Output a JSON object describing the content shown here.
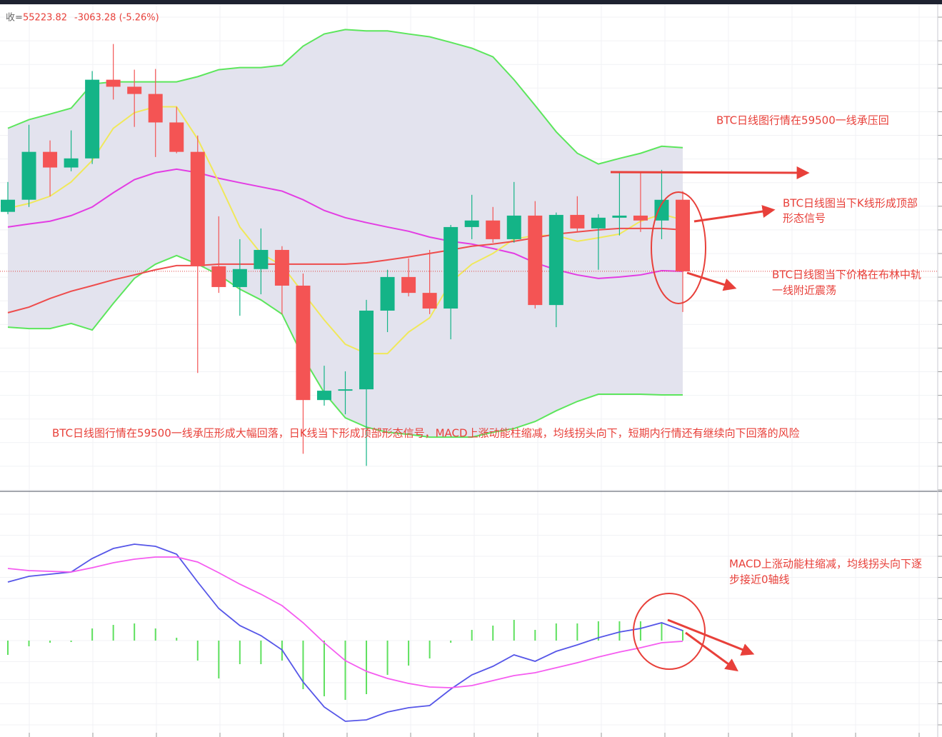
{
  "header": {
    "close_label": "收=",
    "close": "55223.82",
    "change": "-3063.28 (-5.26%)"
  },
  "annotations": [
    {
      "lines": [
        "BTC日线图行情在59500一线承压回"
      ]
    },
    {
      "lines": [
        "BTC日线图当下K线形成顶部",
        "形态信号"
      ]
    },
    {
      "lines": [
        "BTC日线图当下价格在布林中轨",
        "一线附近震荡"
      ]
    },
    {
      "lines": [
        "BTC日线图行情在59500一线承压形成大幅回落，日K线当下形成顶部形态信号，MACD上涨动能柱缩减，均线拐头向下，短期内行情还有继续向下回落的风险"
      ]
    },
    {
      "lines": [
        "MACD上涨动能柱缩减，均线拐头向下逐",
        "步接近0轴线"
      ]
    }
  ],
  "chart_data": [
    {
      "type": "candlestick",
      "ylim": [
        45800,
        66600
      ],
      "up_color": "#14b487",
      "down_color": "#f45454",
      "open": [
        57770,
        58290,
        60340,
        59670,
        60060,
        63430,
        63130,
        62820,
        61600,
        60340,
        55440,
        54550,
        55320,
        56140,
        54610,
        49710,
        50110,
        50170,
        53540,
        54980,
        54300,
        53630,
        57120,
        57400,
        56600,
        57610,
        53780,
        57640,
        57060,
        57520,
        57610,
        57400,
        58290
      ],
      "high": [
        59050,
        61500,
        60830,
        61260,
        63800,
        64960,
        63860,
        63890,
        62270,
        61040,
        57580,
        56600,
        57060,
        56300,
        55130,
        51180,
        50940,
        54000,
        55290,
        55780,
        56140,
        57210,
        58500,
        57980,
        59050,
        58230,
        57740,
        58440,
        57670,
        59510,
        59450,
        59570,
        58660
      ],
      "low": [
        57670,
        57980,
        58440,
        59510,
        59820,
        62580,
        61410,
        60120,
        60280,
        50870,
        54300,
        53320,
        54240,
        53390,
        47410,
        49470,
        49100,
        46890,
        52620,
        54150,
        53390,
        52310,
        56600,
        56450,
        56450,
        53630,
        52830,
        56910,
        55290,
        56760,
        56910,
        56600,
        53480
      ],
      "close": [
        58290,
        60340,
        59670,
        60060,
        63430,
        63130,
        62820,
        61600,
        60340,
        55440,
        54550,
        55320,
        56140,
        54610,
        49710,
        50110,
        50170,
        53540,
        54980,
        54300,
        53630,
        57120,
        57400,
        56600,
        57610,
        53780,
        57640,
        57060,
        57520,
        57610,
        57400,
        58287.1,
        55223.82
      ],
      "bollinger": {
        "fill": "#e3e3ee",
        "line_color": "#5ce65c",
        "upper": [
          61350,
          61720,
          61960,
          62210,
          63250,
          63340,
          63340,
          63340,
          63340,
          63560,
          63860,
          63950,
          63950,
          64050,
          64870,
          65390,
          65580,
          65520,
          65520,
          65390,
          65270,
          65030,
          64780,
          64410,
          63430,
          62330,
          61200,
          60280,
          59820,
          60060,
          60280,
          60580,
          60520
        ],
        "lower": [
          52830,
          52770,
          52770,
          52990,
          52710,
          53850,
          54920,
          55530,
          55900,
          55530,
          55070,
          54460,
          54000,
          53390,
          51550,
          50020,
          48950,
          48550,
          48330,
          48240,
          48120,
          48120,
          48120,
          48330,
          48490,
          48790,
          49250,
          49650,
          49960,
          49960,
          49960,
          49930,
          49930
        ]
      },
      "lines": [
        {
          "color": "#e33de3",
          "values": [
            57120,
            57250,
            57370,
            57610,
            57980,
            58590,
            59150,
            59450,
            59600,
            59450,
            59210,
            59020,
            58840,
            58660,
            58290,
            57830,
            57520,
            57310,
            57120,
            56940,
            56690,
            56510,
            56390,
            56200,
            55990,
            55590,
            55290,
            55070,
            54920,
            54980,
            55070,
            55250,
            55220
          ]
        },
        {
          "color": "#f0e85a",
          "values": [
            57920,
            58130,
            58440,
            59050,
            59970,
            61350,
            62020,
            62270,
            62270,
            60890,
            59050,
            57120,
            55990,
            55470,
            54300,
            53140,
            52100,
            51700,
            51700,
            52620,
            53230,
            54760,
            55530,
            55990,
            56600,
            56760,
            56760,
            56510,
            56660,
            56820,
            57370,
            57670,
            57430
          ]
        },
        {
          "color": "#ee4c4c",
          "values": [
            53450,
            53690,
            54060,
            54370,
            54610,
            54860,
            55070,
            55290,
            55470,
            55470,
            55530,
            55530,
            55530,
            55530,
            55530,
            55530,
            55530,
            55590,
            55710,
            55840,
            55990,
            56140,
            56300,
            56390,
            56510,
            56660,
            56820,
            56910,
            57000,
            57060,
            57060,
            57060,
            57000
          ]
        }
      ],
      "price_line_color": "#e04040"
    },
    {
      "type": "macd",
      "ylim": [
        -2660,
        4140
      ],
      "lines": [
        {
          "color": "#5656e8",
          "values": [
            1640,
            1800,
            1860,
            1920,
            2300,
            2580,
            2700,
            2640,
            2420,
            1640,
            900,
            420,
            140,
            -260,
            -1160,
            -1860,
            -2260,
            -2220,
            -2000,
            -1880,
            -1820,
            -1360,
            -960,
            -720,
            -400,
            -580,
            -300,
            -120,
            80,
            240,
            340,
            500,
            280
          ]
        },
        {
          "color": "#f55cf0",
          "values": [
            2020,
            1960,
            1940,
            1920,
            2040,
            2180,
            2280,
            2340,
            2340,
            2200,
            1900,
            1580,
            1300,
            980,
            500,
            -60,
            -560,
            -860,
            -1060,
            -1200,
            -1300,
            -1320,
            -1260,
            -1120,
            -980,
            -900,
            -760,
            -620,
            -460,
            -320,
            -200,
            -60,
            -20
          ]
        }
      ],
      "histogram": {
        "color": "#5ee05e",
        "values": [
          -400,
          -160,
          -60,
          -40,
          340,
          440,
          480,
          340,
          80,
          -560,
          -1060,
          -660,
          -660,
          -560,
          -1360,
          -1560,
          -1660,
          -1500,
          -960,
          -700,
          -500,
          -60,
          300,
          420,
          580,
          300,
          480,
          480,
          540,
          540,
          540,
          500,
          300
        ]
      }
    }
  ]
}
